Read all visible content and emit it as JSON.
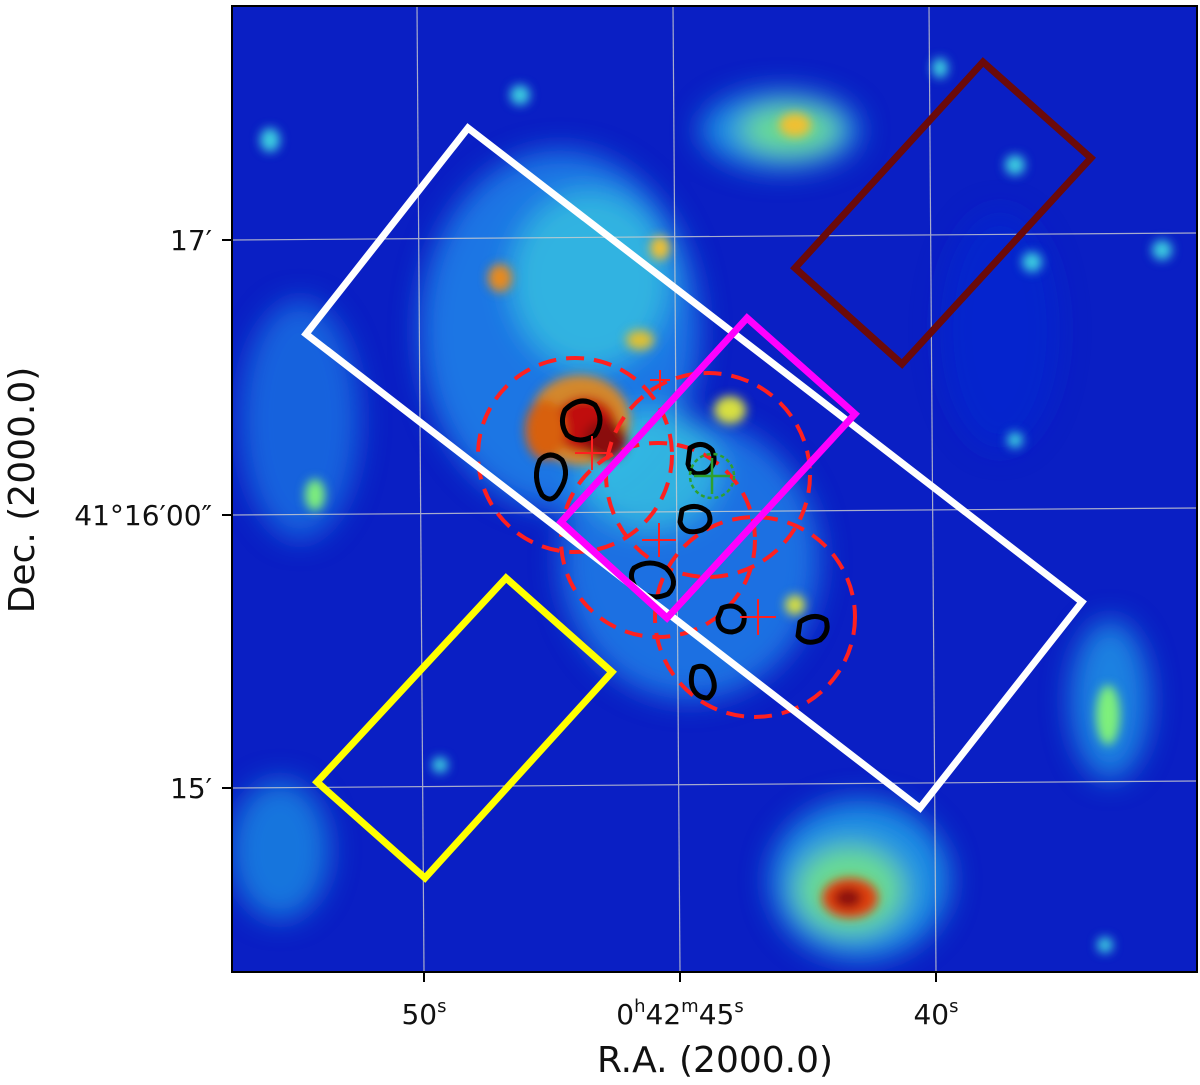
{
  "chart_data": {
    "type": "heatmap",
    "title": "",
    "xlabel": "R.A. (2000.0)",
    "ylabel": "Dec. (2000.0)",
    "x_ticks": [
      {
        "ra_sec": 50,
        "label_main": "50",
        "label_sup": "s"
      },
      {
        "ra_sec": 45,
        "label_main": "0",
        "label_parts": [
          "0",
          "h",
          "42",
          "m",
          "45",
          "s"
        ]
      },
      {
        "ra_sec": 40,
        "label_main": "40",
        "label_sup": "s"
      }
    ],
    "y_ticks": [
      {
        "dec_arcmin": 17,
        "label": "17′"
      },
      {
        "dec_arcmin": 16,
        "label": "41°16′00″"
      },
      {
        "dec_arcmin": 15,
        "label": "15′"
      }
    ],
    "x_range_ra_sec": [
      53.75,
      35.0
    ],
    "y_range_dec_arcmin": [
      14.15,
      17.85
    ],
    "grid": true,
    "colormap": "jet",
    "colors": {
      "white_box": "#ffffff",
      "magenta_box": "#ff00ff",
      "yellow_box": "#ffff00",
      "darkred_box": "#6b0a0a",
      "dashed_circles": "#ff2020",
      "contours": "#000000",
      "crosses": "#ff2020",
      "green_marker": "#2ea02e"
    },
    "bright_sources": [
      {
        "ra_sec": 46.9,
        "dec_arcmin": 16.33,
        "intensity": 1.0
      },
      {
        "ra_sec": 46.2,
        "dec_arcmin": 16.28,
        "intensity": 0.95
      },
      {
        "ra_sec": 46.6,
        "dec_arcmin": 16.2,
        "intensity": 0.85
      },
      {
        "ra_sec": 42.8,
        "dec_arcmin": 17.42,
        "intensity": 0.7
      },
      {
        "ra_sec": 41.7,
        "dec_arcmin": 14.7,
        "intensity": 1.0
      },
      {
        "ra_sec": 48.5,
        "dec_arcmin": 16.85,
        "intensity": 0.55
      }
    ]
  }
}
